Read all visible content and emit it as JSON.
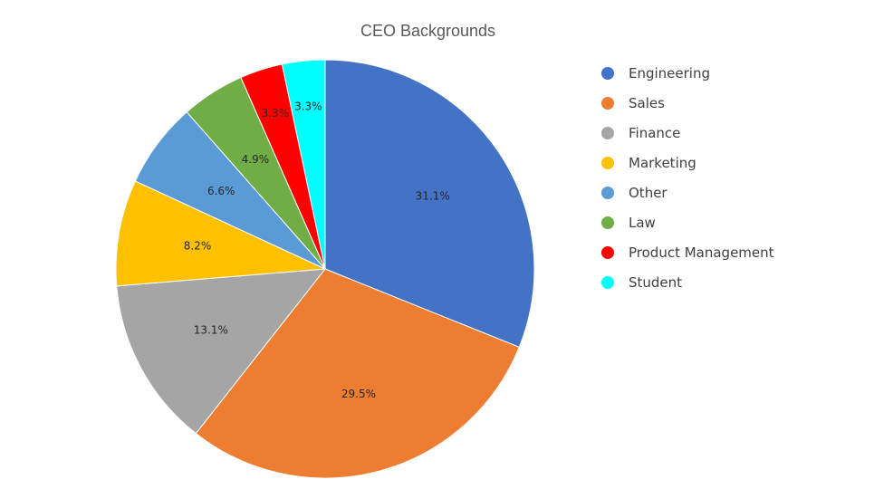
{
  "chart_data": {
    "type": "pie",
    "title": "CEO Backgrounds",
    "categories": [
      "Engineering",
      "Sales",
      "Finance",
      "Marketing",
      "Other",
      "Law",
      "Product Management",
      "Student"
    ],
    "values": [
      31.1,
      29.5,
      13.1,
      8.2,
      6.6,
      4.9,
      3.3,
      3.3
    ],
    "data_labels": [
      "31.1%",
      "29.5%",
      "13.1%",
      "8.2%",
      "6.6%",
      "4.9%",
      "3.3%",
      "3.3%"
    ],
    "colors": [
      "#4472C4",
      "#ED7D31",
      "#A5A5A5",
      "#FFC000",
      "#5B9BD5",
      "#70AD47",
      "#FF0000",
      "#00FFFF"
    ],
    "legend_position": "right",
    "start_angle": "top",
    "direction": "clockwise"
  }
}
